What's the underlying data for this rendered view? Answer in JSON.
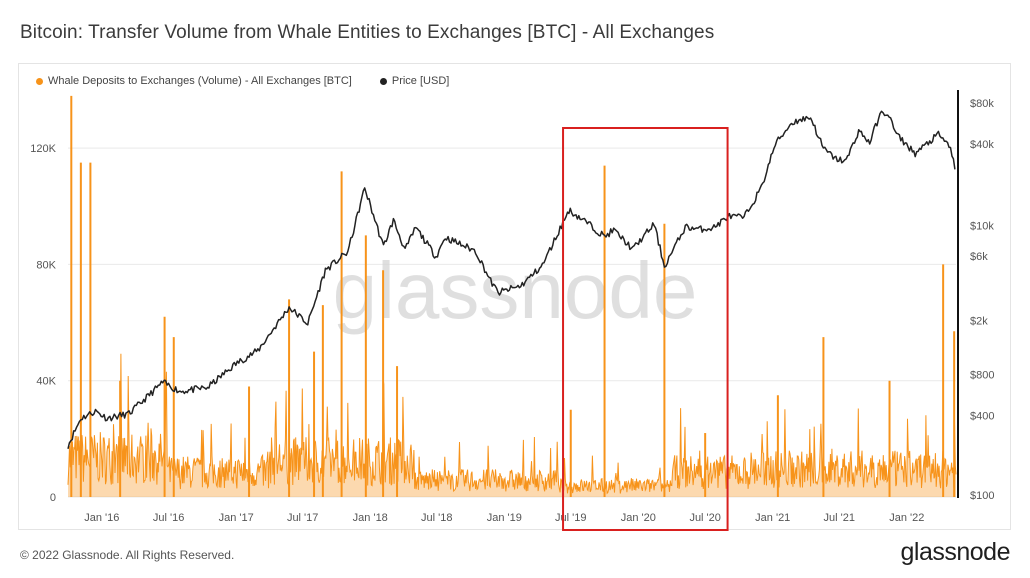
{
  "title": "Bitcoin: Transfer Volume from Whale Entities to Exchanges [BTC] - All Exchanges",
  "footer": "© 2022 Glassnode. All Rights Reserved.",
  "brand": "glassnode",
  "watermark": "glassnode",
  "colors": {
    "volume": "#f7931a",
    "price": "#222222",
    "highlight": "#d9201f",
    "grid": "#e9e9e9"
  },
  "chart_data": {
    "type": "area",
    "legend_position": "top-left",
    "grid": true,
    "series": [
      {
        "name": "Whale Deposits to Exchanges (Volume) - All Exchanges [BTC]",
        "axis": "left",
        "color": "#f7931a"
      },
      {
        "name": "Price [USD]",
        "axis": "right",
        "color": "#222222"
      }
    ],
    "x_ticks": [
      "Jan '16",
      "Jul '16",
      "Jan '17",
      "Jul '17",
      "Jan '18",
      "Jul '18",
      "Jan '19",
      "Jul '19",
      "Jan '20",
      "Jul '20",
      "Jan '21",
      "Jul '21",
      "Jan '22"
    ],
    "x_range": [
      "2015-10-01",
      "2022-05-15"
    ],
    "y_left": {
      "range": [
        0,
        140000
      ],
      "ticks": [
        0,
        40000,
        80000,
        120000
      ],
      "tick_labels": [
        "0",
        "40K",
        "80K",
        "120K"
      ]
    },
    "y_right": {
      "scale": "log",
      "range": [
        100,
        100000
      ],
      "ticks": [
        100,
        400,
        800,
        2000,
        6000,
        10000,
        40000,
        80000
      ],
      "tick_labels": [
        "$100",
        "$400",
        "$800",
        "$2k",
        "$6k",
        "$10k",
        "$40k",
        "$80k"
      ]
    },
    "volume_spikes": [
      [
        "2015-10-10",
        138000
      ],
      [
        "2015-11-05",
        115000
      ],
      [
        "2015-12-01",
        115000
      ],
      [
        "2016-02-20",
        40000
      ],
      [
        "2016-06-20",
        62000
      ],
      [
        "2016-07-15",
        55000
      ],
      [
        "2017-02-05",
        38000
      ],
      [
        "2017-05-25",
        68000
      ],
      [
        "2017-08-01",
        50000
      ],
      [
        "2017-08-25",
        66000
      ],
      [
        "2017-10-15",
        112000
      ],
      [
        "2017-12-20",
        90000
      ],
      [
        "2018-02-05",
        78000
      ],
      [
        "2018-03-15",
        45000
      ],
      [
        "2019-07-01",
        30000
      ],
      [
        "2019-10-01",
        114000
      ],
      [
        "2020-03-12",
        94000
      ],
      [
        "2020-07-01",
        22000
      ],
      [
        "2021-01-15",
        35000
      ],
      [
        "2021-05-19",
        55000
      ],
      [
        "2021-11-15",
        40000
      ],
      [
        "2022-04-10",
        80000
      ],
      [
        "2022-05-10",
        57000
      ]
    ],
    "price": [
      [
        "2015-10-01",
        240
      ],
      [
        "2015-11-05",
        380
      ],
      [
        "2015-12-15",
        430
      ],
      [
        "2016-01-15",
        380
      ],
      [
        "2016-03-15",
        410
      ],
      [
        "2016-06-15",
        700
      ],
      [
        "2016-08-01",
        600
      ],
      [
        "2016-10-15",
        640
      ],
      [
        "2016-12-31",
        960
      ],
      [
        "2017-03-01",
        1200
      ],
      [
        "2017-05-25",
        2500
      ],
      [
        "2017-07-15",
        1900
      ],
      [
        "2017-09-01",
        4700
      ],
      [
        "2017-11-01",
        6400
      ],
      [
        "2017-12-17",
        19000
      ],
      [
        "2018-02-06",
        7000
      ],
      [
        "2018-03-05",
        11000
      ],
      [
        "2018-04-06",
        6600
      ],
      [
        "2018-05-05",
        9700
      ],
      [
        "2018-06-29",
        5900
      ],
      [
        "2018-07-24",
        8200
      ],
      [
        "2018-10-15",
        6500
      ],
      [
        "2018-11-25",
        3900
      ],
      [
        "2018-12-15",
        3200
      ],
      [
        "2019-02-15",
        3600
      ],
      [
        "2019-04-15",
        5100
      ],
      [
        "2019-06-26",
        13000
      ],
      [
        "2019-08-15",
        10500
      ],
      [
        "2019-10-01",
        8300
      ],
      [
        "2019-10-26",
        9300
      ],
      [
        "2019-12-17",
        6700
      ],
      [
        "2020-02-13",
        10300
      ],
      [
        "2020-03-12",
        5000
      ],
      [
        "2020-05-08",
        9800
      ],
      [
        "2020-06-15",
        9400
      ],
      [
        "2020-07-25",
        9700
      ],
      [
        "2020-09-01",
        11700
      ],
      [
        "2020-10-15",
        11500
      ],
      [
        "2020-12-01",
        19000
      ],
      [
        "2021-01-08",
        40000
      ],
      [
        "2021-02-21",
        57000
      ],
      [
        "2021-03-13",
        60000
      ],
      [
        "2021-04-14",
        63000
      ],
      [
        "2021-05-19",
        37000
      ],
      [
        "2021-06-22",
        31000
      ],
      [
        "2021-07-20",
        30000
      ],
      [
        "2021-08-23",
        50000
      ],
      [
        "2021-09-22",
        41000
      ],
      [
        "2021-10-20",
        66000
      ],
      [
        "2021-11-10",
        68000
      ],
      [
        "2021-12-04",
        47000
      ],
      [
        "2022-01-24",
        34000
      ],
      [
        "2022-03-28",
        47000
      ],
      [
        "2022-04-30",
        38000
      ],
      [
        "2022-05-12",
        26000
      ]
    ],
    "highlight_box": {
      "from": "2019-06-10",
      "to": "2020-08-31"
    }
  }
}
